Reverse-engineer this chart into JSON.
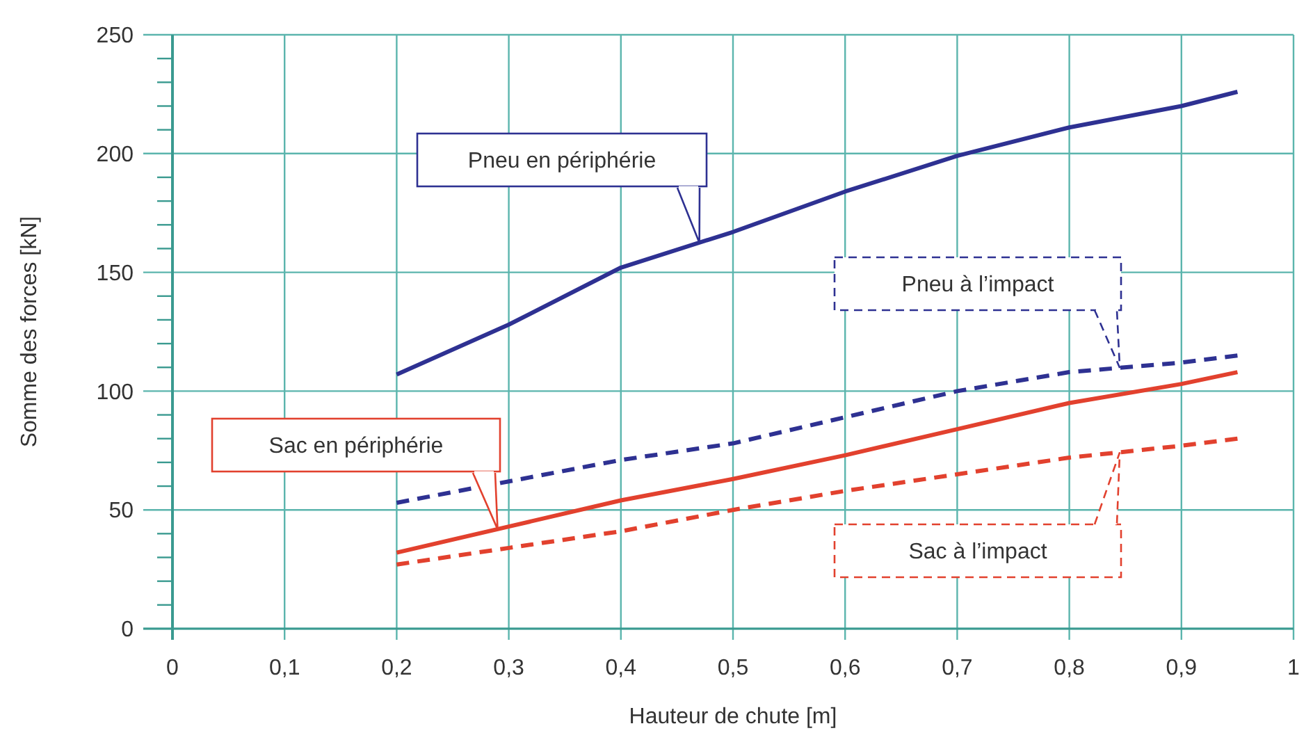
{
  "chart_data": {
    "type": "line",
    "xlabel": "Hauteur de chute [m]",
    "ylabel": "Somme des forces [kN]",
    "xlim": [
      0,
      1
    ],
    "ylim": [
      0,
      250
    ],
    "xticks": [
      {
        "value": 0,
        "label": "0"
      },
      {
        "value": 0.1,
        "label": "0,1"
      },
      {
        "value": 0.2,
        "label": "0,2"
      },
      {
        "value": 0.3,
        "label": "0,3"
      },
      {
        "value": 0.4,
        "label": "0,4"
      },
      {
        "value": 0.5,
        "label": "0,5"
      },
      {
        "value": 0.6,
        "label": "0,6"
      },
      {
        "value": 0.7,
        "label": "0,7"
      },
      {
        "value": 0.8,
        "label": "0,8"
      },
      {
        "value": 0.9,
        "label": "0,9"
      },
      {
        "value": 1,
        "label": "1"
      }
    ],
    "yticks": [
      0,
      {
        "value": 10,
        "label": null
      },
      {
        "value": 20,
        "label": null
      },
      {
        "value": 30,
        "label": null
      },
      {
        "value": 40,
        "label": null
      },
      50,
      {
        "value": 60,
        "label": null
      },
      {
        "value": 70,
        "label": null
      },
      {
        "value": 80,
        "label": null
      },
      {
        "value": 90,
        "label": null
      },
      100,
      {
        "value": 110,
        "label": null
      },
      {
        "value": 120,
        "label": null
      },
      {
        "value": 130,
        "label": null
      },
      {
        "value": 140,
        "label": null
      },
      150,
      {
        "value": 160,
        "label": null
      },
      {
        "value": 170,
        "label": null
      },
      {
        "value": 180,
        "label": null
      },
      {
        "value": 190,
        "label": null
      },
      200,
      {
        "value": 210,
        "label": null
      },
      {
        "value": 220,
        "label": null
      },
      {
        "value": 230,
        "label": null
      },
      {
        "value": 240,
        "label": null
      },
      250
    ],
    "x": [
      0.2,
      0.3,
      0.4,
      0.5,
      0.6,
      0.7,
      0.8,
      0.9,
      0.95
    ],
    "grid": true,
    "legend": false,
    "marker": "none",
    "series": [
      {
        "name": "Pneu en périphérie",
        "color": "#2e3192",
        "line_style": "solid",
        "values": [
          107,
          128,
          152,
          167,
          184,
          199,
          211,
          220,
          226
        ]
      },
      {
        "name": "Pneu à l’impact",
        "color": "#2e3192",
        "line_style": "dashed",
        "values": [
          53,
          62,
          71,
          78,
          89,
          100,
          108,
          112,
          115
        ]
      },
      {
        "name": "Sac en périphérie",
        "color": "#e2412e",
        "line_style": "solid",
        "values": [
          32,
          43,
          54,
          63,
          73,
          84,
          95,
          103,
          108
        ]
      },
      {
        "name": "Sac à l’impact",
        "color": "#e2412e",
        "line_style": "dashed",
        "values": [
          27,
          34,
          41,
          50,
          58,
          65,
          72,
          77,
          80
        ]
      }
    ]
  }
}
